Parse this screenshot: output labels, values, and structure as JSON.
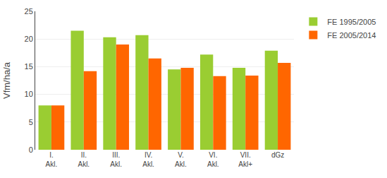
{
  "chart_data": {
    "type": "bar",
    "categories": [
      "I.\nAkl.",
      "II.\nAkl.",
      "III.\nAkl.",
      "IV.\nAkl.",
      "V.\nAkl.",
      "VI.\nAkl.",
      "VII.\nAkl+",
      "dGz"
    ],
    "series": [
      {
        "name": "FE 1995/2005",
        "color": "#9ACD32",
        "values": [
          8.0,
          21.5,
          20.3,
          20.7,
          14.5,
          17.2,
          14.8,
          17.9
        ]
      },
      {
        "name": "FE 2005/2014",
        "color": "#FF6600",
        "values": [
          8.0,
          14.2,
          19.0,
          16.5,
          14.8,
          13.3,
          13.4,
          15.7
        ]
      }
    ],
    "ylabel": "Vfm/ha/a",
    "ylim": [
      0,
      25
    ],
    "yticks": [
      0,
      5,
      10,
      15,
      20,
      25
    ],
    "grid": true,
    "legend": "upper right"
  }
}
